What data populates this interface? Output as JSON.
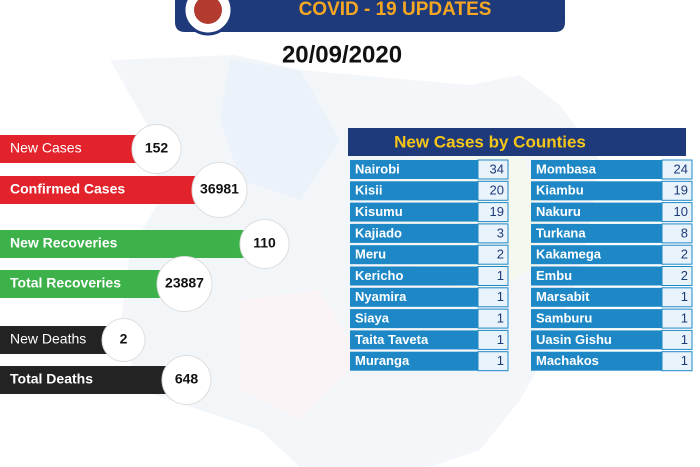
{
  "header": {
    "title": "COVID - 19 UPDATES",
    "date": "20/09/2020"
  },
  "stats": [
    {
      "label": "New Cases",
      "value": 152
    },
    {
      "label": "Confirmed Cases",
      "value": 36981
    },
    {
      "label": "New Recoveries",
      "value": 110
    },
    {
      "label": "Total Recoveries",
      "value": 23887
    },
    {
      "label": "New Deaths",
      "value": 2
    },
    {
      "label": "Total Deaths",
      "value": 648
    }
  ],
  "counties": {
    "title": "New Cases by Counties",
    "columns": [
      [
        {
          "name": "Nairobi",
          "value": 34
        },
        {
          "name": "Kisii",
          "value": 20
        },
        {
          "name": "Kisumu",
          "value": 19
        },
        {
          "name": "Kajiado",
          "value": 3
        },
        {
          "name": "Meru",
          "value": 2
        },
        {
          "name": "Kericho",
          "value": 1
        },
        {
          "name": "Nyamira",
          "value": 1
        },
        {
          "name": "Siaya",
          "value": 1
        },
        {
          "name": "Taita Taveta",
          "value": 1
        },
        {
          "name": "Muranga",
          "value": 1
        }
      ],
      [
        {
          "name": "Mombasa",
          "value": 24
        },
        {
          "name": "Kiambu",
          "value": 19
        },
        {
          "name": "Nakuru",
          "value": 10
        },
        {
          "name": "Turkana",
          "value": 8
        },
        {
          "name": "Kakamega",
          "value": 2
        },
        {
          "name": "Embu",
          "value": 2
        },
        {
          "name": "Marsabit",
          "value": 1
        },
        {
          "name": "Samburu",
          "value": 1
        },
        {
          "name": "Uasin Gishu",
          "value": 1
        },
        {
          "name": "Machakos",
          "value": 1
        }
      ]
    ]
  }
}
